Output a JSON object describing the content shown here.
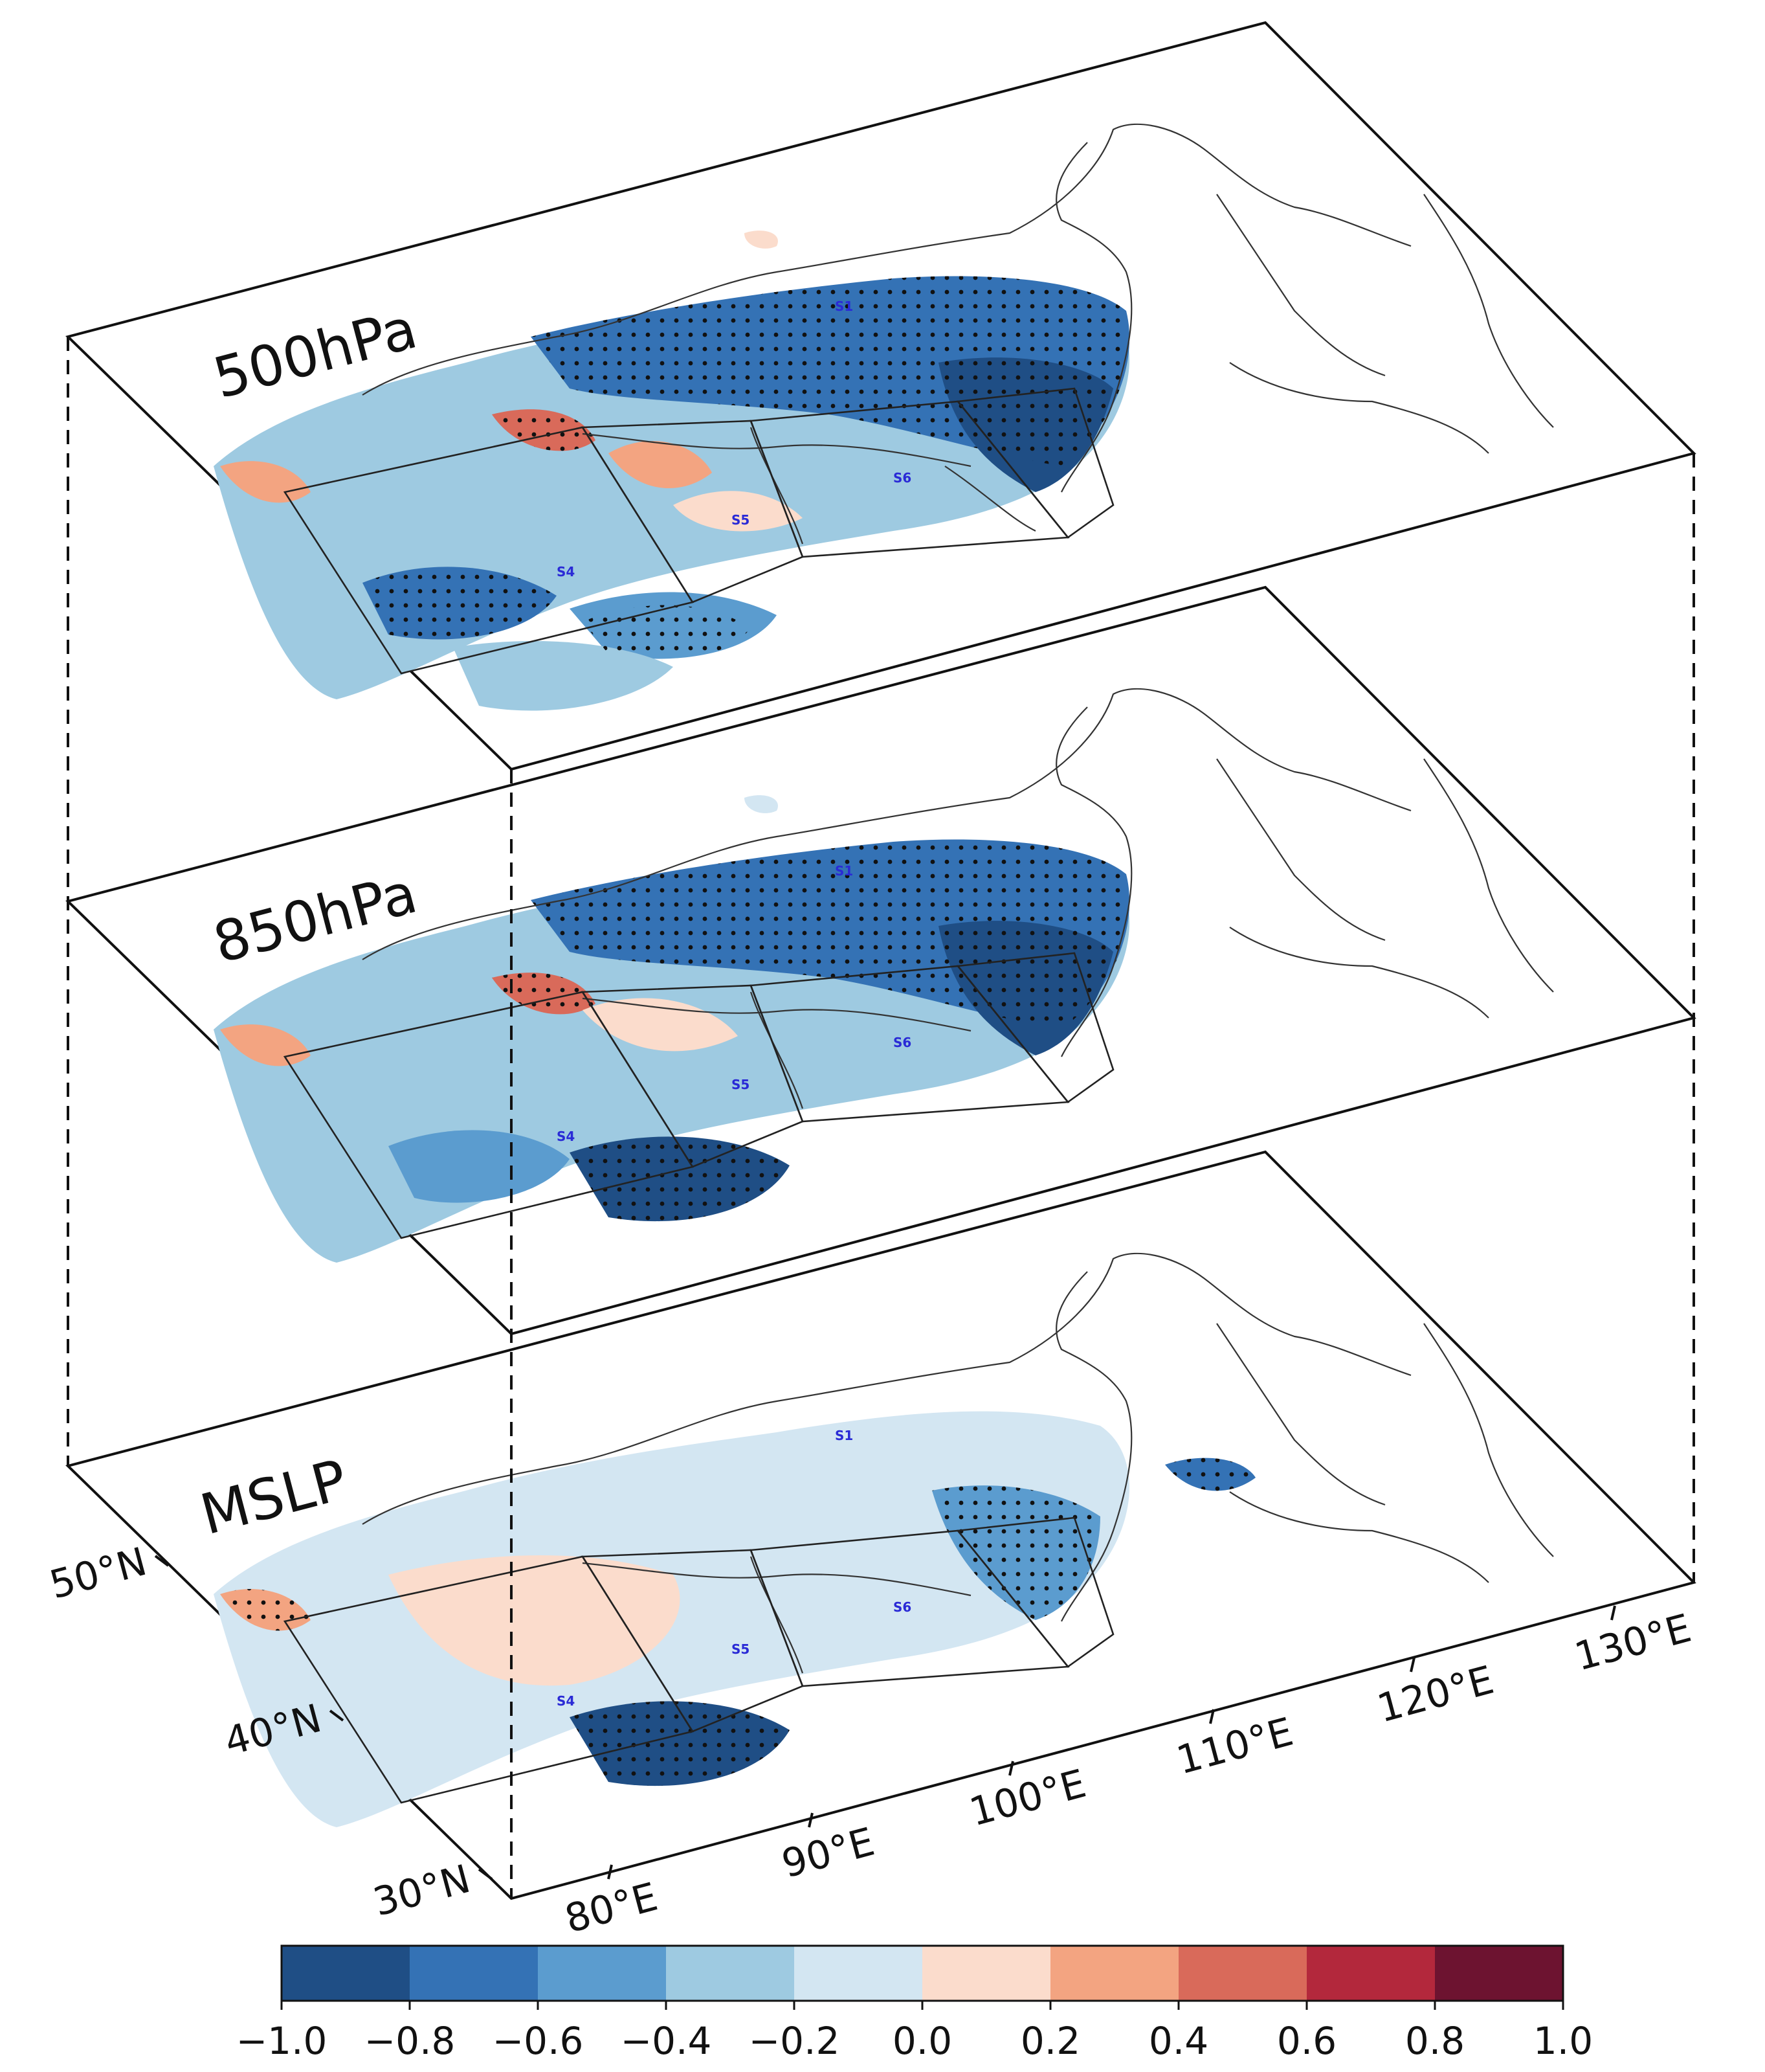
{
  "layers": [
    {
      "id": "top",
      "title": "500hPa"
    },
    {
      "id": "mid",
      "title": "850hPa"
    },
    {
      "id": "bot",
      "title": "MSLP"
    }
  ],
  "latitude_ticks": [
    "50°N",
    "40°N",
    "30°N"
  ],
  "longitude_ticks": [
    "80°E",
    "90°E",
    "100°E",
    "110°E",
    "120°E",
    "130°E"
  ],
  "site_labels": [
    "S1",
    "S4",
    "S5",
    "S6"
  ],
  "colorbar": {
    "tick_labels": [
      "−1.0",
      "−0.8",
      "−0.6",
      "−0.4",
      "−0.2",
      "0.0",
      "0.2",
      "0.4",
      "0.6",
      "0.8",
      "1.0"
    ],
    "colors": [
      "#1f4e85",
      "#3472b5",
      "#5b9ccf",
      "#9ecae1",
      "#d3e6f2",
      "#fbdccc",
      "#f3a481",
      "#d96a5a",
      "#b3283c",
      "#6d1330"
    ]
  },
  "palette": {
    "significance_dot": "#111111",
    "border": "#333333",
    "site_text": "#2a2ad6"
  }
}
